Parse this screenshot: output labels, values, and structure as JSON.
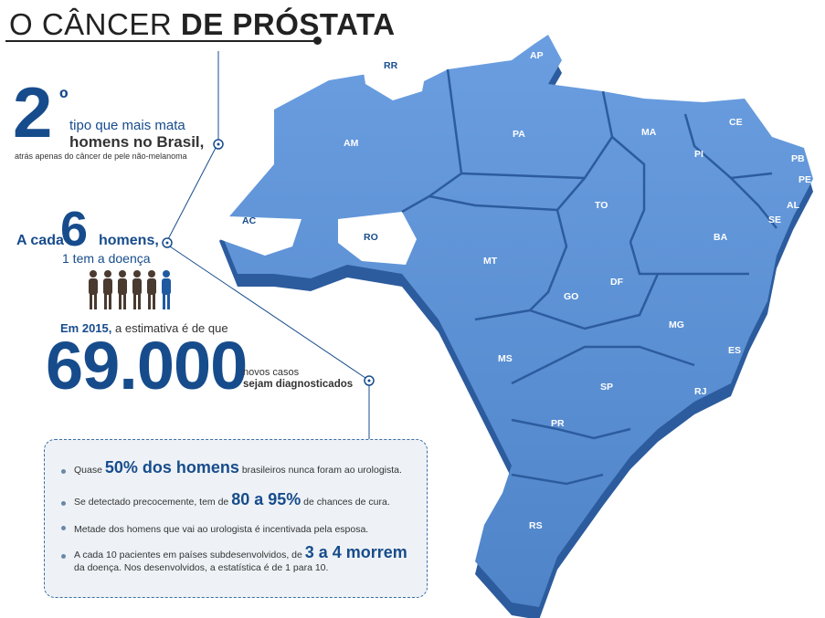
{
  "title": {
    "light": "O CÂNCER",
    "bold": "DE PRÓSTATA"
  },
  "stat_rank": {
    "number": "2",
    "superscript": "º",
    "line1": "tipo que mais mata",
    "line2": "homens no Brasil,",
    "note": "atrás apenas do câncer de pele não-melanoma"
  },
  "stat_ratio": {
    "prefix": "A cada",
    "number": "6",
    "suffix": "homens,",
    "line2": "1 tem a doença"
  },
  "estimate": {
    "year_label": "Em 2015,",
    "intro_rest": "a estimativa é de que",
    "number": "69.000",
    "line1": "novos casos",
    "line2": "sejam diagnosticados"
  },
  "facts": [
    {
      "pre": "Quase ",
      "highlight": "50% dos homens",
      "post": " brasileiros nunca foram ao urologista."
    },
    {
      "pre": "Se detectado precocemente, tem de ",
      "highlight": "80 a 95%",
      "post": " de chances de cura."
    },
    {
      "pre": "Metade dos homens que vai ao urologista é incentivada pela esposa.",
      "highlight": "",
      "post": ""
    },
    {
      "pre": "A cada 10 pacientes em países subdesenvolvidos, de ",
      "highlight": "3 a 4 morrem",
      "post": "da doença. Nos desenvolvidos, a estatística é de 1 para 10."
    }
  ],
  "states": [
    "RR",
    "AP",
    "AM",
    "PA",
    "MA",
    "CE",
    "PI",
    "PB",
    "PE",
    "AL",
    "SE",
    "TO",
    "AC",
    "RO",
    "MT",
    "BA",
    "DF",
    "GO",
    "MG",
    "ES",
    "MS",
    "SP",
    "RJ",
    "PR",
    "RS"
  ],
  "colors": {
    "accent": "#174c8c",
    "map_fill": "#5b8fd1",
    "map_side": "#2c5c9e",
    "text": "#333333"
  }
}
